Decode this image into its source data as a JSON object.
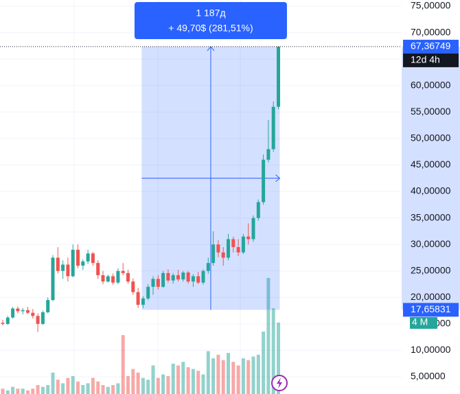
{
  "chart_data": {
    "type": "candlestick",
    "up_color": "#26a69a",
    "down_color": "#ef5350",
    "ylim": [
      1.76,
      76.17
    ],
    "yticks": [
      {
        "value": 5,
        "label": "5,00000"
      },
      {
        "value": 10,
        "label": "10,00000"
      },
      {
        "value": 15,
        "label": "15,00000"
      },
      {
        "value": 20,
        "label": "20,00000"
      },
      {
        "value": 25,
        "label": "25,00000"
      },
      {
        "value": 30,
        "label": "30,00000"
      },
      {
        "value": 35,
        "label": "35,00000"
      },
      {
        "value": 40,
        "label": "40,00000"
      },
      {
        "value": 45,
        "label": "45,00000"
      },
      {
        "value": 50,
        "label": "50,00000"
      },
      {
        "value": 55,
        "label": "55,00000"
      },
      {
        "value": 60,
        "label": "60,00000"
      },
      {
        "value": 65,
        "label": "65,00000"
      },
      {
        "value": 70,
        "label": "70,00000"
      },
      {
        "value": 75,
        "label": "75,00000"
      }
    ],
    "grid": true,
    "open": [
      15.2,
      15.0,
      16.2,
      17.9,
      17.4,
      17.6,
      17.1,
      16.5,
      15.0,
      17.2,
      19.5,
      27.5,
      25.0,
      26.2,
      24.0,
      29.0,
      26.0,
      26.8,
      28.3,
      26.5,
      24.2,
      23.0,
      24.0,
      22.8,
      25.0,
      24.6,
      23.0,
      21.0,
      18.6,
      19.8,
      22.0,
      23.5,
      22.0,
      24.6,
      23.2,
      24.2,
      23.4,
      24.7,
      23.0,
      24.0,
      22.8,
      25.0,
      26.5,
      30.0,
      28.5,
      27.5,
      31.0,
      29.5,
      28.5,
      31.5,
      31.0,
      35.0,
      38.0,
      46.0,
      48.0,
      56.0
    ],
    "high": [
      15.8,
      16.5,
      18.2,
      18.3,
      18.0,
      18.2,
      17.8,
      17.0,
      17.5,
      20.0,
      28.0,
      29.5,
      27.0,
      27.5,
      30.0,
      30.0,
      27.2,
      29.0,
      28.6,
      27.0,
      25.0,
      24.3,
      24.5,
      25.5,
      26.5,
      25.2,
      23.6,
      21.8,
      20.2,
      22.5,
      24.0,
      24.2,
      25.0,
      25.3,
      24.6,
      25.2,
      25.0,
      25.0,
      24.4,
      24.8,
      25.3,
      27.5,
      32.5,
      30.8,
      29.5,
      32.0,
      31.5,
      31.0,
      32.0,
      34.0,
      35.5,
      38.5,
      47.0,
      53.5,
      57.0,
      67.36749
    ],
    "low": [
      14.7,
      14.8,
      16.0,
      17.0,
      16.8,
      16.9,
      16.0,
      13.5,
      14.8,
      17.0,
      19.3,
      24.5,
      23.5,
      23.0,
      23.8,
      25.5,
      25.2,
      26.3,
      26.0,
      23.5,
      22.5,
      22.8,
      22.4,
      22.5,
      24.2,
      22.6,
      20.5,
      18.0,
      18.0,
      19.5,
      20.5,
      21.5,
      21.8,
      22.8,
      22.6,
      23.0,
      23.0,
      22.6,
      22.0,
      22.5,
      22.4,
      24.5,
      26.0,
      27.6,
      26.0,
      27.0,
      28.5,
      27.8,
      28.2,
      30.0,
      30.5,
      34.5,
      37.5,
      45.5,
      47.5,
      55.5
    ],
    "close": [
      15.0,
      16.2,
      17.9,
      17.4,
      17.6,
      17.1,
      16.5,
      15.0,
      17.2,
      19.5,
      27.5,
      25.0,
      26.2,
      24.0,
      29.0,
      26.0,
      26.8,
      28.3,
      26.5,
      24.2,
      23.0,
      24.0,
      22.8,
      25.0,
      24.6,
      23.0,
      21.0,
      18.6,
      19.8,
      22.0,
      23.5,
      22.0,
      24.6,
      23.2,
      24.2,
      23.4,
      24.7,
      23.0,
      24.0,
      22.8,
      25.0,
      26.5,
      30.0,
      28.5,
      27.5,
      31.0,
      29.5,
      28.5,
      31.5,
      31.0,
      35.0,
      38.0,
      46.0,
      48.0,
      56.0,
      67.36749
    ],
    "volume": {
      "values": [
        0.3,
        0.2,
        0.4,
        0.3,
        0.3,
        0.2,
        0.3,
        0.5,
        0.4,
        0.5,
        1.2,
        0.8,
        0.6,
        0.9,
        1.0,
        0.7,
        0.5,
        0.6,
        0.9,
        0.7,
        0.5,
        0.4,
        0.5,
        0.6,
        3.3,
        1.0,
        1.4,
        1.2,
        0.9,
        0.8,
        1.6,
        0.9,
        1.1,
        1.0,
        1.7,
        1.6,
        1.8,
        1.5,
        1.4,
        1.3,
        1.1,
        2.4,
        2.0,
        2.2,
        1.9,
        2.3,
        1.8,
        1.6,
        2.0,
        1.9,
        2.1,
        2.2,
        3.5,
        6.5,
        4.8,
        4.0
      ],
      "last_label": "4 M"
    },
    "last_price": {
      "value": 67.36749,
      "label": "67,36749"
    },
    "countdown": "12d 4h",
    "measure": {
      "from": 17.65831,
      "from_label": "17,65831",
      "to": 67.36749,
      "bars_label": "1 187д",
      "change_label": "+ 49,70$ (281,51%)"
    }
  }
}
